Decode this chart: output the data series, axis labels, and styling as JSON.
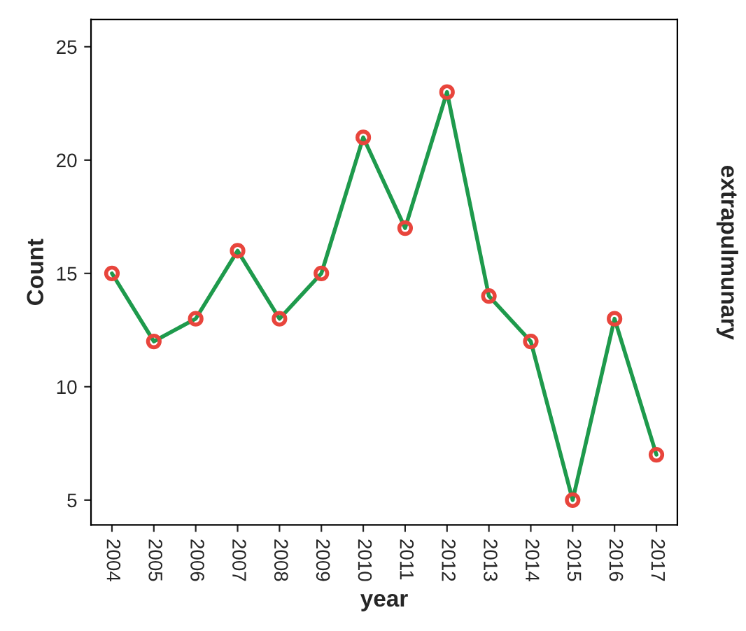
{
  "chart_data": {
    "type": "line",
    "xlabel": "year",
    "ylabel": "Count",
    "categories": [
      "2004",
      "2005",
      "2006",
      "2007",
      "2008",
      "2009",
      "2010",
      "2011",
      "2012",
      "2013",
      "2014",
      "2015",
      "2016",
      "2017"
    ],
    "series": [
      {
        "color": "#1e9a4c",
        "values": [
          15,
          12,
          13,
          16,
          13,
          15,
          21,
          17,
          23,
          14,
          12,
          5,
          13,
          7
        ]
      }
    ],
    "ylim": [
      3.9,
      26.2
    ],
    "yticks": [
      5,
      10,
      15,
      20,
      25
    ],
    "marker": "circle",
    "line_style": "solid",
    "grid": false,
    "legend": false,
    "annotations": [
      "extrapulmunary"
    ]
  }
}
